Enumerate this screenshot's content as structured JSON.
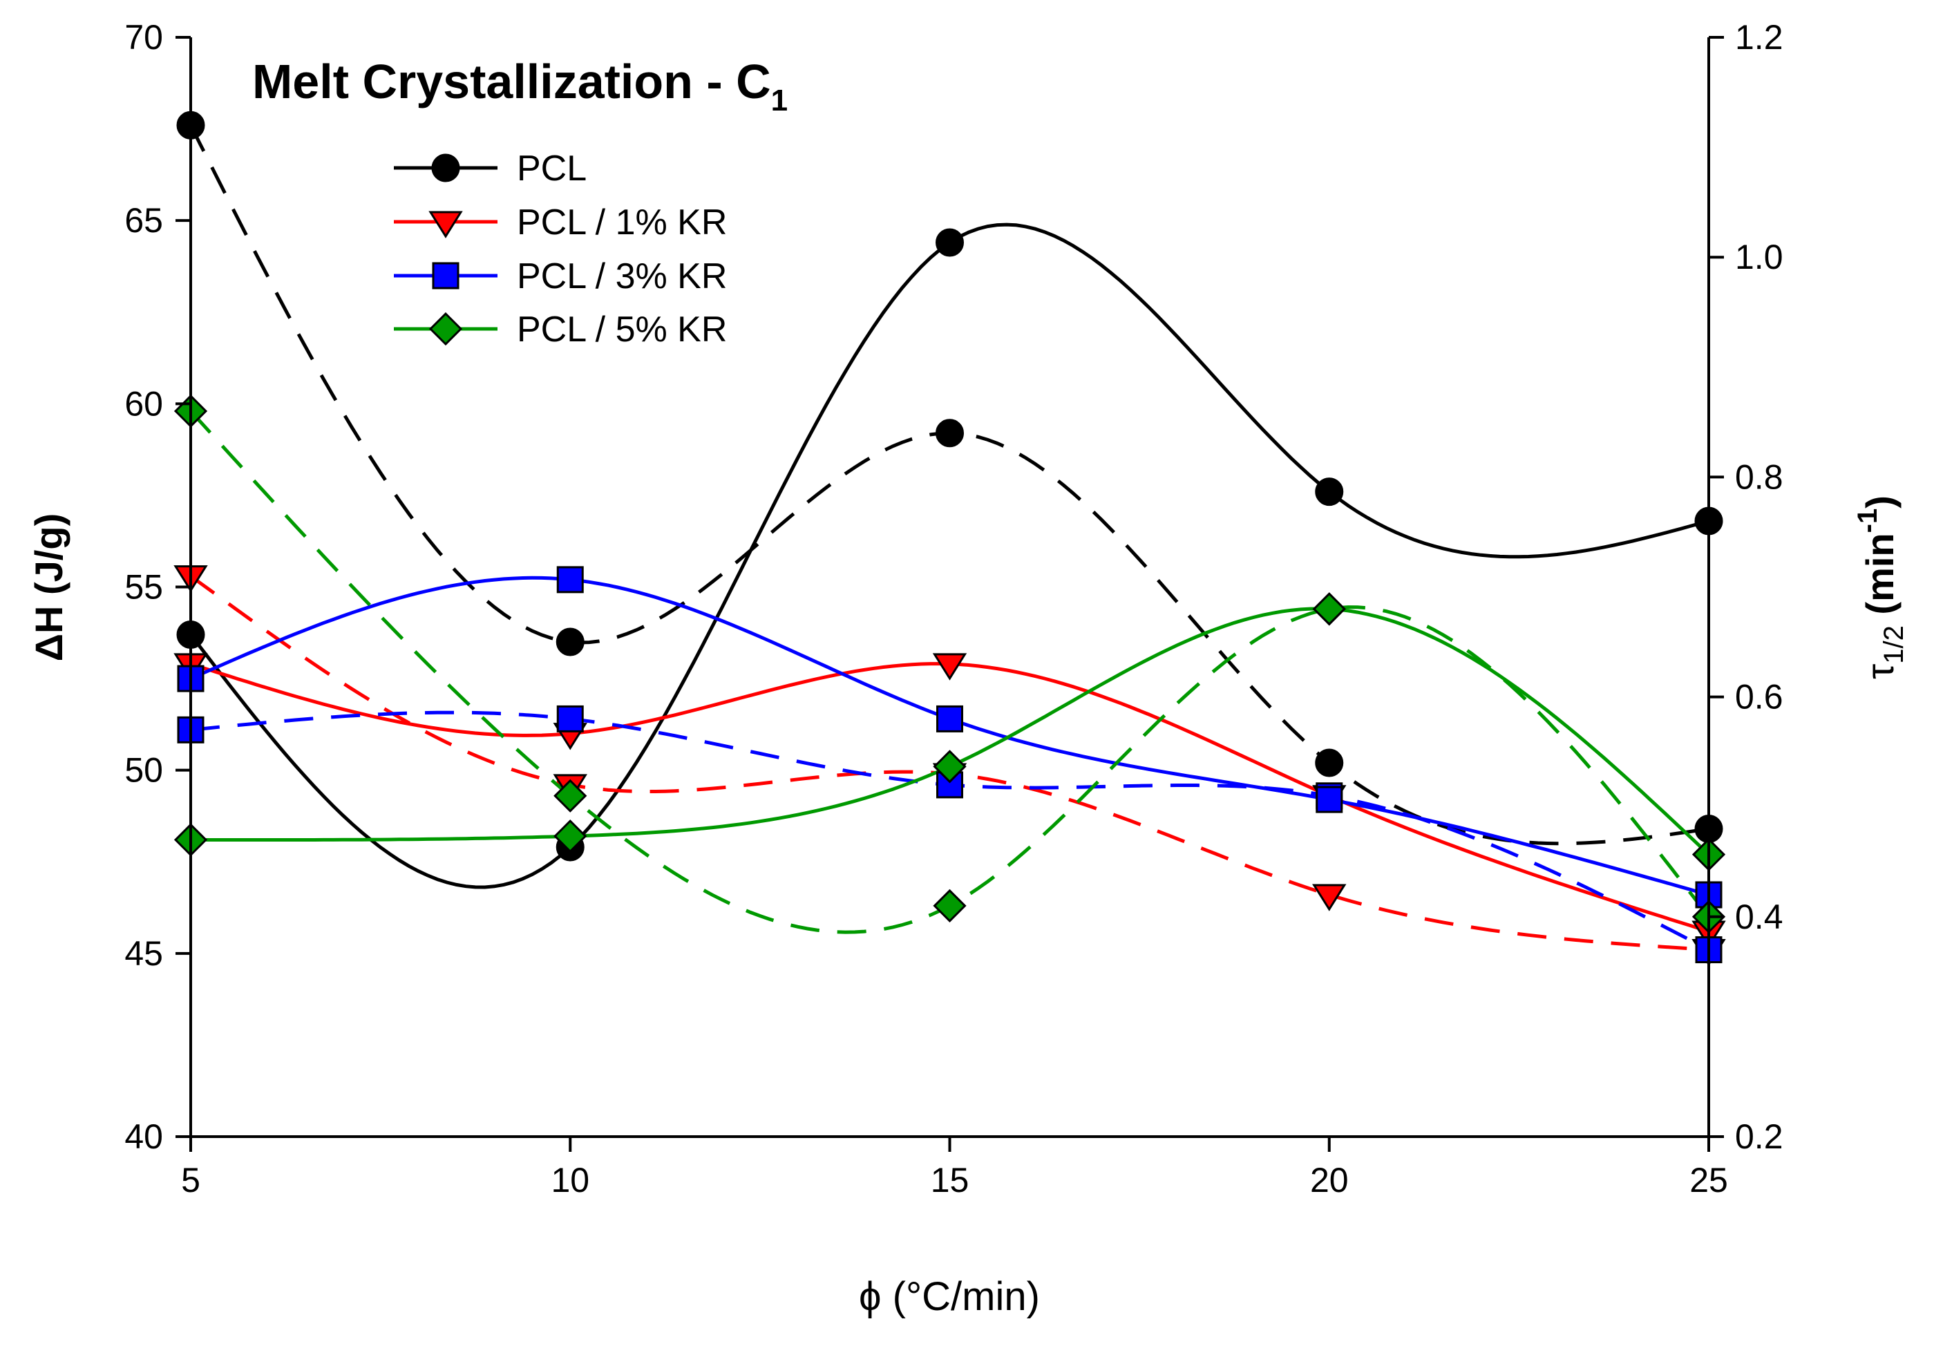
{
  "chart_data": {
    "type": "line",
    "title": "Melt Crystallization - C",
    "title_subscript": "1",
    "xlabel": "ϕ (°C/min)",
    "ylabel": "ΔH (J/g)",
    "y2label_main": "τ",
    "y2label_sub": "1/2",
    "y2label_unit": " (min",
    "y2label_exp": "-1",
    "y2label_close": ")",
    "x": [
      5,
      10,
      15,
      20,
      25
    ],
    "xlim": [
      5,
      25
    ],
    "xticks": [
      5,
      10,
      15,
      20,
      25
    ],
    "ylim": [
      40,
      70
    ],
    "yticks": [
      40,
      45,
      50,
      55,
      60,
      65,
      70
    ],
    "y2lim": [
      0.2,
      1.2
    ],
    "y2ticks": [
      "0.2",
      "0.4",
      "0.6",
      "0.8",
      "1.0",
      "1.2"
    ],
    "legend_position": "top-left",
    "grid": false,
    "series": [
      {
        "name": "PCL",
        "color": "#000000",
        "marker": "circle",
        "dh_values": [
          53.7,
          47.9,
          64.4,
          57.6,
          56.8
        ],
        "t_half_values": [
          1.12,
          0.65,
          0.84,
          0.54,
          0.48
        ]
      },
      {
        "name": "PCL / 1% KR",
        "color": "#ff0000",
        "marker": "triangle-down",
        "dh_values": [
          52.9,
          51.0,
          52.9,
          49.3,
          45.6
        ],
        "t_half_values": [
          0.71,
          0.52,
          0.53,
          0.42,
          0.37
        ]
      },
      {
        "name": "PCL / 3% KR",
        "color": "#0000ff",
        "marker": "square",
        "dh_values": [
          52.5,
          55.2,
          51.4,
          49.2,
          46.6
        ],
        "t_half_values": [
          0.57,
          0.58,
          0.52,
          0.51,
          0.37
        ]
      },
      {
        "name": "PCL / 5% KR",
        "color": "#009900",
        "marker": "diamond",
        "dh_values": [
          48.1,
          48.2,
          50.1,
          54.4,
          47.7
        ],
        "t_half_values": [
          0.86,
          0.51,
          0.41,
          0.68,
          0.4
        ]
      }
    ]
  }
}
